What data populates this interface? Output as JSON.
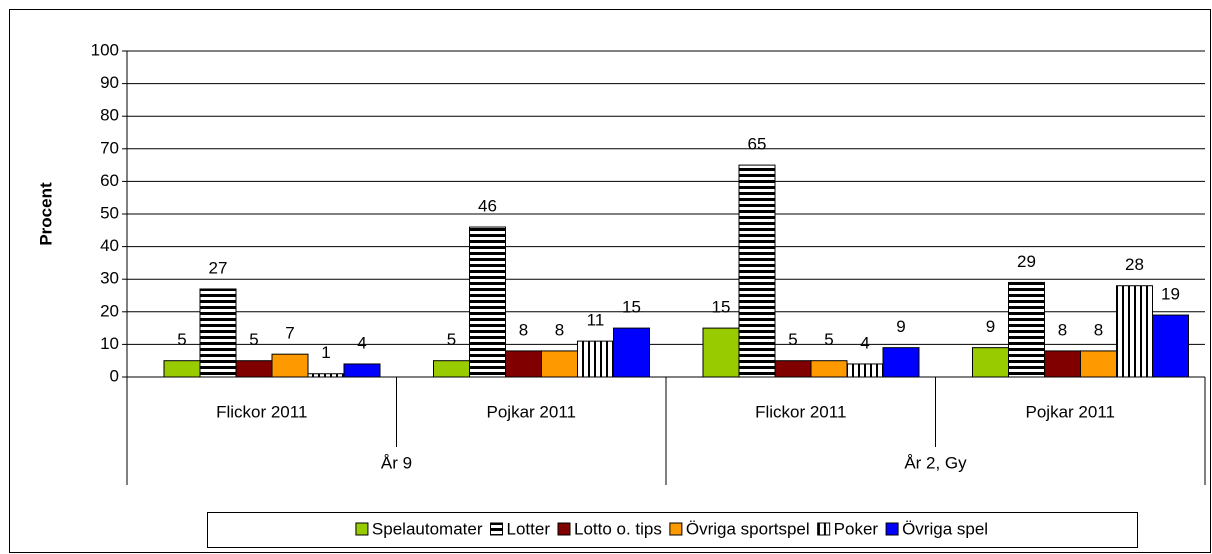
{
  "chart_data": {
    "type": "bar",
    "y_label": "Procent",
    "categories": [
      "Flickor 2011",
      "Pojkar 2011",
      "Flickor 2011",
      "Pojkar 2011"
    ],
    "groups": [
      {
        "label": "År 9",
        "span": 2
      },
      {
        "label": "År 2, Gy",
        "span": 2
      }
    ],
    "series": [
      {
        "name": "Spelautomater",
        "color": "#99cc00",
        "values": [
          5,
          5,
          15,
          9
        ]
      },
      {
        "name": "Lotter",
        "color": "#000000",
        "pattern": "horizontal",
        "values": [
          27,
          46,
          65,
          29
        ]
      },
      {
        "name": "Lotto o. tips",
        "color": "#800000",
        "values": [
          5,
          8,
          5,
          8
        ]
      },
      {
        "name": "Övriga sportspel",
        "color": "#ff9900",
        "values": [
          7,
          8,
          5,
          8
        ]
      },
      {
        "name": "Poker",
        "color": "#000000",
        "pattern": "vertical",
        "values": [
          1,
          11,
          4,
          28
        ]
      },
      {
        "name": "Övriga spel",
        "color": "#0000ff",
        "values": [
          4,
          15,
          9,
          19
        ]
      }
    ],
    "ylim": [
      0,
      100
    ],
    "yticks": [
      0,
      10,
      20,
      30,
      40,
      50,
      60,
      70,
      80,
      90,
      100
    ],
    "grid": true,
    "legend": "bottom"
  }
}
